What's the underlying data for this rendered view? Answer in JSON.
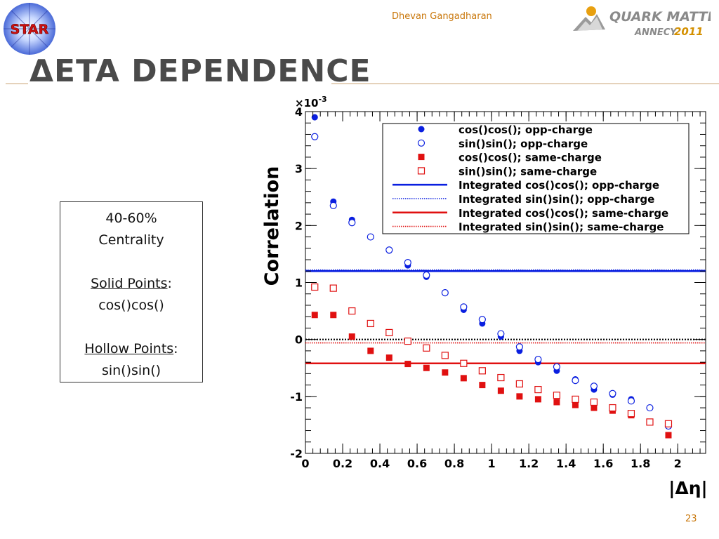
{
  "header": {
    "author": "Dhevan Gangadharan",
    "title": "ΔETA DEPENDENCE",
    "star_logo_text": "STAR",
    "conference_line1": "QUARK MATTER",
    "conference_line2": "ANNECY",
    "conference_year": "2011"
  },
  "info_box": {
    "line1": "40-60%",
    "line2": "Centrality",
    "solid_label": "Solid Points",
    "solid_value": "cos()cos()",
    "hollow_label": "Hollow Points",
    "hollow_value": "sin()sin()",
    "colon": ":"
  },
  "footer": {
    "page_number": "23"
  },
  "colors": {
    "blue": "#0a1fe0",
    "red": "#e01010",
    "title_gray": "#4a4a4a",
    "accent_orange": "#c9770b"
  },
  "chart_data": {
    "type": "scatter",
    "ylabel": "Correlation",
    "xlabel": "|Δη|",
    "y_exponent": "×10",
    "y_exponent_power": "-3",
    "xlim": [
      0,
      2.15
    ],
    "ylim": [
      -2,
      4
    ],
    "x_ticks": [
      "0",
      "0.2",
      "0.4",
      "0.6",
      "0.8",
      "1",
      "1.2",
      "1.4",
      "1.6",
      "1.8",
      "2"
    ],
    "y_ticks": [
      "-2",
      "-1",
      "0",
      "1",
      "2",
      "3",
      "4"
    ],
    "legend_placement": "top-right",
    "grid": false,
    "points": [
      {
        "name": "cos()cos(); opp-charge",
        "marker": "filled-circle",
        "color": "#0a1fe0",
        "x": [
          0.05,
          0.15,
          0.25,
          0.35,
          0.45,
          0.55,
          0.65,
          0.75,
          0.85,
          0.95,
          1.05,
          1.15,
          1.25,
          1.35,
          1.45,
          1.55,
          1.65,
          1.75,
          1.85,
          1.95
        ],
        "y": [
          3.9,
          2.42,
          2.1,
          1.8,
          1.56,
          1.3,
          1.1,
          0.82,
          0.52,
          0.28,
          0.05,
          -0.2,
          -0.4,
          -0.55,
          -0.7,
          -0.88,
          -0.97,
          -1.05,
          -1.2,
          -1.5
        ]
      },
      {
        "name": "sin()sin(); opp-charge",
        "marker": "hollow-circle",
        "color": "#0a1fe0",
        "x": [
          0.05,
          0.15,
          0.25,
          0.35,
          0.45,
          0.55,
          0.65,
          0.75,
          0.85,
          0.95,
          1.05,
          1.15,
          1.25,
          1.35,
          1.45,
          1.55,
          1.65,
          1.75,
          1.85,
          1.95
        ],
        "y": [
          3.56,
          2.35,
          2.05,
          1.8,
          1.57,
          1.35,
          1.13,
          0.82,
          0.57,
          0.35,
          0.1,
          -0.13,
          -0.35,
          -0.48,
          -0.72,
          -0.82,
          -0.95,
          -1.08,
          -1.2,
          -1.52
        ]
      },
      {
        "name": "cos()cos(); same-charge",
        "marker": "filled-square",
        "color": "#e01010",
        "x": [
          0.05,
          0.15,
          0.25,
          0.35,
          0.45,
          0.55,
          0.65,
          0.75,
          0.85,
          0.95,
          1.05,
          1.15,
          1.25,
          1.35,
          1.45,
          1.55,
          1.65,
          1.75,
          1.85,
          1.95
        ],
        "y": [
          0.43,
          0.43,
          0.05,
          -0.2,
          -0.32,
          -0.43,
          -0.5,
          -0.58,
          -0.68,
          -0.8,
          -0.9,
          -1.0,
          -1.05,
          -1.1,
          -1.15,
          -1.2,
          -1.25,
          -1.33,
          -1.45,
          -1.68
        ]
      },
      {
        "name": "sin()sin(); same-charge",
        "marker": "hollow-square",
        "color": "#e01010",
        "x": [
          0.05,
          0.15,
          0.25,
          0.35,
          0.45,
          0.55,
          0.65,
          0.75,
          0.85,
          0.95,
          1.05,
          1.15,
          1.25,
          1.35,
          1.45,
          1.55,
          1.65,
          1.75,
          1.85,
          1.95
        ],
        "y": [
          0.92,
          0.9,
          0.5,
          0.28,
          0.12,
          -0.03,
          -0.15,
          -0.28,
          -0.42,
          -0.55,
          -0.67,
          -0.78,
          -0.88,
          -0.98,
          -1.05,
          -1.1,
          -1.2,
          -1.3,
          -1.45,
          -1.48
        ]
      }
    ],
    "lines": [
      {
        "name": "Integrated cos()cos(); opp-charge",
        "style": "solid",
        "color": "#0a1fe0",
        "y": 1.2
      },
      {
        "name": "Integrated sin()sin(); opp-charge",
        "style": "dotted",
        "color": "#0a1fe0",
        "y": 1.22
      },
      {
        "name": "Integrated cos()cos(); same-charge",
        "style": "solid",
        "color": "#e01010",
        "y": -0.42
      },
      {
        "name": "Integrated sin()sin(); same-charge",
        "style": "dotted",
        "color": "#e01010",
        "y": -0.06
      }
    ],
    "zero_line": {
      "style": "dotted",
      "color": "#000000",
      "y": 0
    }
  }
}
